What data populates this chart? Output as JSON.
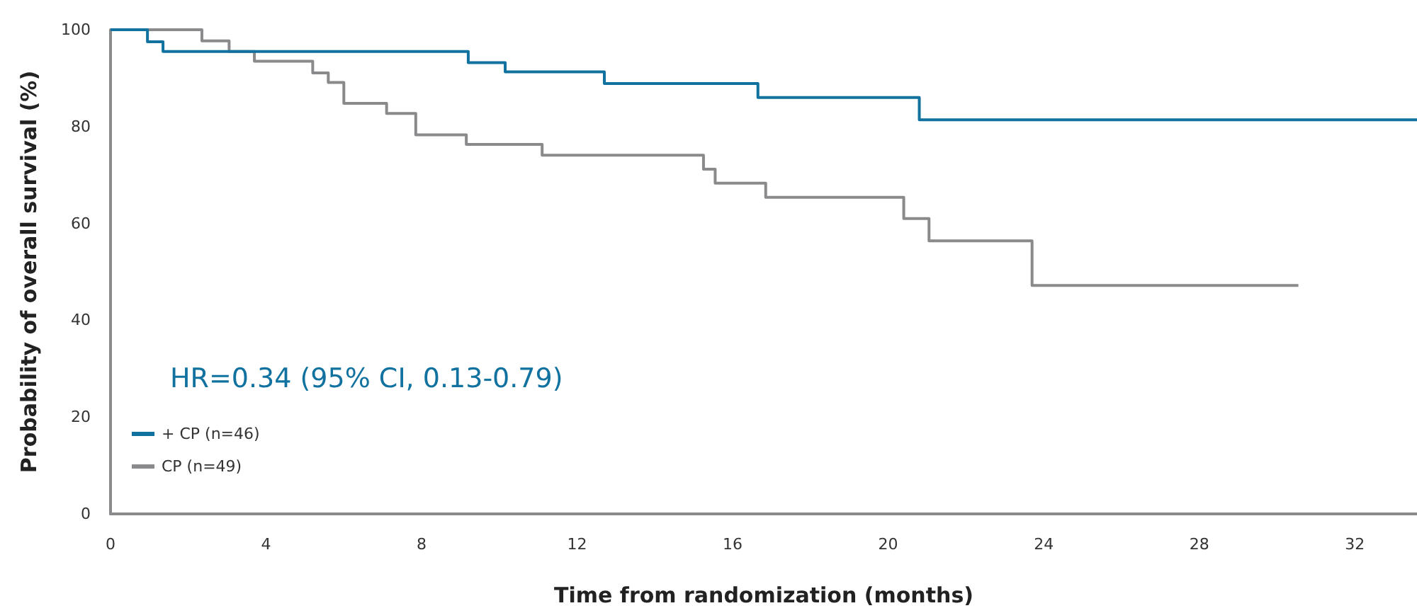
{
  "chart_data": {
    "type": "step",
    "xlabel": "Time from randomization (months)",
    "ylabel": "Probability of overall survival (%)",
    "annotations": [
      "HR=0.34 (95% CI, 0.13-0.79)"
    ],
    "series": [
      {
        "name": "+ CP (n=46)",
        "color": "#1172a0",
        "x": [
          0,
          0.95,
          1.35,
          9.2,
          10.15,
          12.7,
          16.65,
          20.8,
          33.6
        ],
        "values": [
          100,
          97.5,
          95.5,
          93.2,
          91.3,
          88.9,
          86,
          81.4,
          81.4
        ]
      },
      {
        "name": "CP (n=49)",
        "color": "#8a8a8c",
        "x": [
          0,
          2.35,
          3.05,
          3.7,
          5.2,
          5.6,
          6.0,
          7.1,
          7.85,
          9.15,
          11.1,
          15.25,
          15.55,
          16.85,
          20.4,
          21.05,
          23.7,
          30.55
        ],
        "values": [
          100,
          97.7,
          95.5,
          93.5,
          91.1,
          89.1,
          84.8,
          82.7,
          78.3,
          76.3,
          74.1,
          71.2,
          68.3,
          65.4,
          61,
          56.4,
          47.2,
          47.2
        ]
      }
    ],
    "xlim": [
      0,
      33.6
    ],
    "xticks": [
      0,
      4,
      8,
      12,
      16,
      20,
      24,
      28,
      32
    ],
    "ylim": [
      0,
      100
    ],
    "yticks": [
      0,
      20,
      40,
      60,
      80,
      100
    ],
    "legend": "bottom left",
    "grid": false
  }
}
